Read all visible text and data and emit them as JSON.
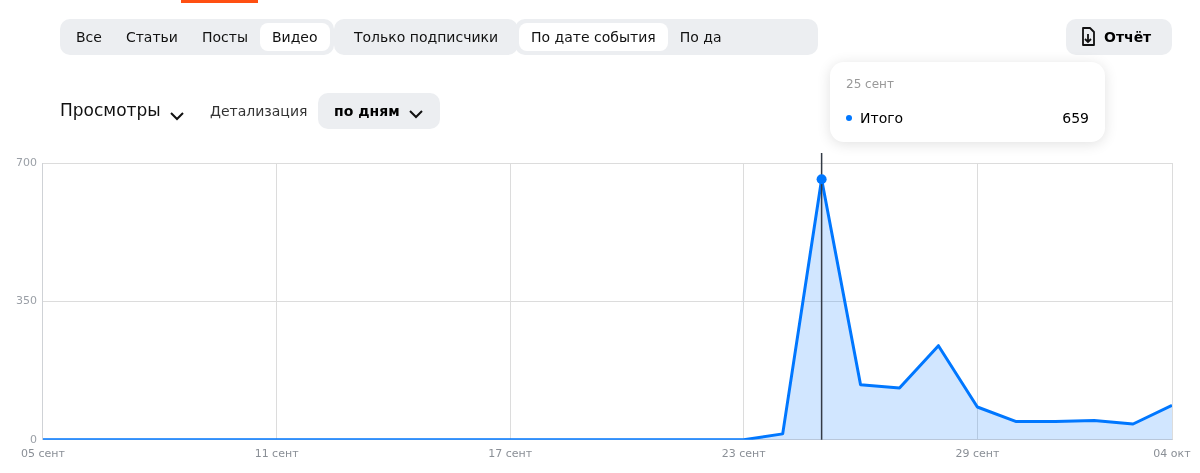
{
  "chart_data": {
    "type": "area",
    "title": "Просмотры",
    "x": [
      "--09-05",
      "--09-06",
      "--09-07",
      "--09-08",
      "--09-09",
      "--09-10",
      "--09-11",
      "--09-12",
      "--09-13",
      "--09-14",
      "--09-15",
      "--09-16",
      "--09-17",
      "--09-18",
      "--09-19",
      "--09-20",
      "--09-21",
      "--09-22",
      "--09-23",
      "--09-24",
      "--09-25",
      "--09-26",
      "--09-27",
      "--09-28",
      "--09-29",
      "--09-30",
      "--10-01",
      "--10-02",
      "--10-03",
      "--10-04"
    ],
    "series": [
      {
        "name": "Итого",
        "color": "#0077ff",
        "values": [
          0,
          0,
          0,
          0,
          0,
          0,
          0,
          0,
          0,
          0,
          0,
          0,
          0,
          0,
          0,
          0,
          0,
          0,
          0,
          15,
          659,
          139,
          131,
          238,
          83,
          46,
          46,
          49,
          40,
          87
        ]
      }
    ],
    "xlim": [
      "--09-05",
      "--10-04"
    ],
    "xticks": [
      {
        "value": "--09-05",
        "label": "05 сент"
      },
      {
        "value": "--09-11",
        "label": "11 сент"
      },
      {
        "value": "--09-17",
        "label": "17 сент"
      },
      {
        "value": "--09-23",
        "label": "23 сент"
      },
      {
        "value": "--09-29",
        "label": "29 сент"
      },
      {
        "value": "--10-04",
        "label": "04 окт"
      }
    ],
    "ylim": [
      0,
      700
    ],
    "yticks": [
      0,
      350,
      700
    ],
    "grid": true,
    "marker": "none",
    "ref_lines": [
      {
        "axis": "x",
        "value": "--09-25",
        "color": "#333a45"
      }
    ],
    "annotations": [
      "Все",
      "Статьи",
      "Посты",
      "Видео",
      "Только подписчики",
      "По дате события",
      "По да",
      "Отчёт",
      "Детализация",
      "по дням",
      "25 сент",
      "659"
    ]
  }
}
